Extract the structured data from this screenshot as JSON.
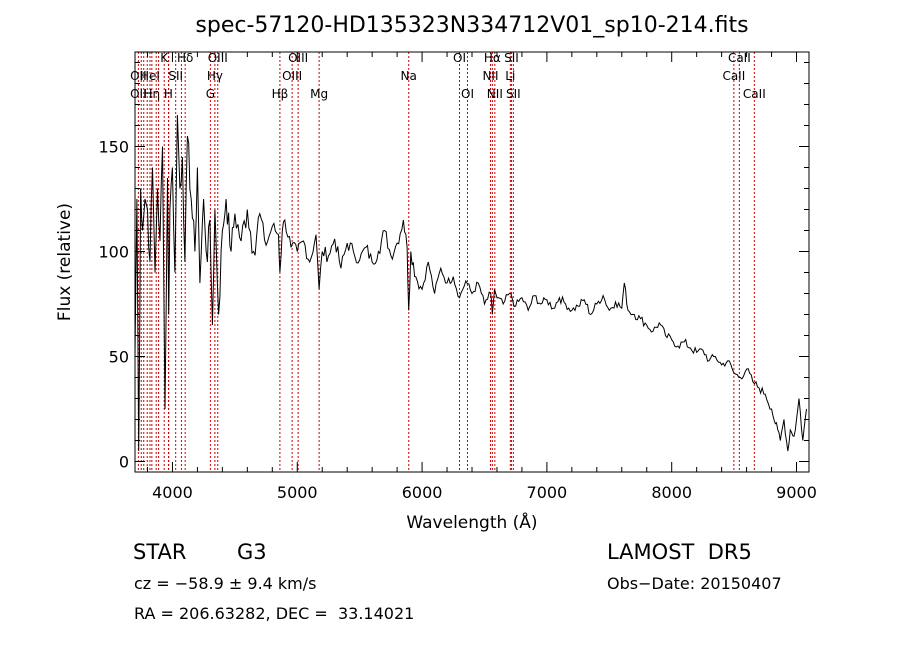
{
  "chart_data": {
    "type": "line",
    "title": "spec-57120-HD135323N334712V01_sp10-214.fits",
    "xlabel": "Wavelength (Å)",
    "ylabel": "Flux (relative)",
    "xlim": [
      3700,
      9100
    ],
    "ylim": [
      -5,
      195
    ],
    "xticks": [
      4000,
      5000,
      6000,
      7000,
      8000,
      9000
    ],
    "yticks": [
      0,
      50,
      100,
      150
    ],
    "grid": false,
    "line_color": "#000000",
    "marker_color": "#cc0000",
    "series": [
      {
        "x": [
          3700,
          3715,
          3730,
          3745,
          3760,
          3780,
          3800,
          3820,
          3840,
          3860,
          3880,
          3900,
          3920,
          3940,
          3960,
          3970,
          3980,
          4000,
          4020,
          4040,
          4060,
          4080,
          4100,
          4120,
          4150,
          4180,
          4200,
          4220,
          4250,
          4280,
          4300,
          4320,
          4340,
          4370,
          4400,
          4430,
          4470,
          4500,
          4550,
          4600,
          4650,
          4700,
          4750,
          4800,
          4850,
          4861,
          4880,
          4900,
          4950,
          5000,
          5050,
          5100,
          5150,
          5175,
          5200,
          5250,
          5300,
          5350,
          5400,
          5450,
          5500,
          5550,
          5600,
          5650,
          5700,
          5750,
          5800,
          5850,
          5880,
          5893,
          5910,
          5950,
          6000,
          6050,
          6100,
          6150,
          6200,
          6250,
          6300,
          6350,
          6400,
          6450,
          6500,
          6550,
          6563,
          6580,
          6600,
          6650,
          6700,
          6750,
          6800,
          6850,
          6900,
          6950,
          7000,
          7050,
          7100,
          7150,
          7200,
          7250,
          7300,
          7350,
          7400,
          7450,
          7500,
          7550,
          7600,
          7620,
          7650,
          7700,
          7750,
          7800,
          7850,
          7900,
          7950,
          8000,
          8050,
          8100,
          8150,
          8200,
          8250,
          8300,
          8350,
          8400,
          8450,
          8500,
          8550,
          8600,
          8650,
          8700,
          8750,
          8800,
          8830,
          8850,
          8870,
          8900,
          8930,
          8950,
          8980,
          9000,
          9020,
          9050,
          9080
        ],
        "y": [
          50,
          125,
          5,
          130,
          110,
          125,
          120,
          95,
          140,
          90,
          130,
          105,
          150,
          25,
          135,
          70,
          120,
          140,
          90,
          165,
          130,
          145,
          95,
          155,
          125,
          100,
          140,
          85,
          125,
          95,
          115,
          65,
          120,
          70,
          110,
          125,
          100,
          118,
          105,
          120,
          100,
          118,
          103,
          112,
          108,
          90,
          110,
          115,
          102,
          100,
          105,
          95,
          108,
          82,
          100,
          98,
          106,
          92,
          104,
          100,
          96,
          102,
          95,
          100,
          110,
          98,
          104,
          115,
          102,
          72,
          100,
          88,
          82,
          95,
          80,
          92,
          85,
          88,
          78,
          86,
          80,
          85,
          75,
          80,
          70,
          82,
          78,
          75,
          80,
          74,
          78,
          72,
          79,
          75,
          77,
          73,
          78,
          75,
          72,
          74,
          77,
          70,
          75,
          79,
          72,
          76,
          73,
          85,
          72,
          70,
          68,
          65,
          62,
          66,
          60,
          58,
          55,
          57,
          54,
          52,
          53,
          48,
          50,
          46,
          48,
          42,
          40,
          44,
          38,
          35,
          32,
          25,
          18,
          15,
          10,
          20,
          5,
          15,
          12,
          20,
          30,
          10,
          25
        ]
      }
    ],
    "lines": [
      {
        "wave": 3727,
        "labels": [
          {
            "t": "OII",
            "row": 2
          },
          {
            "t": "OII",
            "row": 3
          }
        ]
      },
      {
        "wave": 3750,
        "labels": [
          {
            "t": "",
            "row": 1
          }
        ]
      },
      {
        "wave": 3770,
        "labels": []
      },
      {
        "wave": 3798,
        "labels": []
      },
      {
        "wave": 3820,
        "labels": [
          {
            "t": "HeI",
            "row": 2
          }
        ]
      },
      {
        "wave": 3835,
        "labels": [
          {
            "t": "Hη",
            "row": 3
          }
        ]
      },
      {
        "wave": 3870,
        "labels": []
      },
      {
        "wave": 3889,
        "labels": []
      },
      {
        "wave": 3934,
        "labels": [
          {
            "t": "K",
            "row": 1
          }
        ]
      },
      {
        "wave": 3968,
        "labels": [
          {
            "t": "H",
            "row": 3
          }
        ]
      },
      {
        "wave": 3970,
        "labels": []
      },
      {
        "wave": 4026,
        "labels": [
          {
            "t": "SII",
            "row": 2
          }
        ]
      },
      {
        "wave": 4072,
        "labels": []
      },
      {
        "wave": 4102,
        "labels": [
          {
            "t": "Hδ",
            "row": 1
          }
        ]
      },
      {
        "wave": 4304,
        "labels": [
          {
            "t": "G",
            "row": 3
          }
        ]
      },
      {
        "wave": 4340,
        "labels": [
          {
            "t": "Hγ",
            "row": 2
          }
        ]
      },
      {
        "wave": 4363,
        "labels": [
          {
            "t": "OIII",
            "row": 1
          }
        ]
      },
      {
        "wave": 4861,
        "labels": [
          {
            "t": "Hβ",
            "row": 3
          }
        ]
      },
      {
        "wave": 4959,
        "labels": [
          {
            "t": "OIII",
            "row": 2
          }
        ]
      },
      {
        "wave": 5007,
        "labels": [
          {
            "t": "OIII",
            "row": 1
          }
        ]
      },
      {
        "wave": 5175,
        "labels": [
          {
            "t": "Mg",
            "row": 3
          }
        ]
      },
      {
        "wave": 5893,
        "labels": [
          {
            "t": "Na",
            "row": 2
          }
        ]
      },
      {
        "wave": 6300,
        "labels": [
          {
            "t": "OI",
            "row": 1
          }
        ]
      },
      {
        "wave": 6364,
        "labels": [
          {
            "t": "OI",
            "row": 3
          }
        ]
      },
      {
        "wave": 6548,
        "labels": [
          {
            "t": "NII",
            "row": 2
          }
        ]
      },
      {
        "wave": 6563,
        "labels": [
          {
            "t": "Hα",
            "row": 1
          }
        ]
      },
      {
        "wave": 6583,
        "labels": [
          {
            "t": "NII",
            "row": 3
          }
        ]
      },
      {
        "wave": 6707,
        "labels": [
          {
            "t": "Li",
            "row": 2
          }
        ]
      },
      {
        "wave": 6716,
        "labels": [
          {
            "t": "SII",
            "row": 1
          }
        ]
      },
      {
        "wave": 6731,
        "labels": [
          {
            "t": "SII",
            "row": 3
          }
        ]
      },
      {
        "wave": 8498,
        "labels": [
          {
            "t": "CaII",
            "row": 2
          }
        ]
      },
      {
        "wave": 8542,
        "labels": [
          {
            "t": "CaII",
            "row": 1
          }
        ]
      },
      {
        "wave": 8662,
        "labels": [
          {
            "t": "CaII",
            "row": 3
          }
        ]
      }
    ]
  },
  "info": {
    "obj_class": "STAR",
    "subclass": "G3",
    "survey": "LAMOST  DR5",
    "cz": "cz = −58.9 ± 9.4 km/s",
    "obs_date": "Obs−Date: 20150407",
    "radec": "RA = 206.63282, DEC =  33.14021"
  }
}
